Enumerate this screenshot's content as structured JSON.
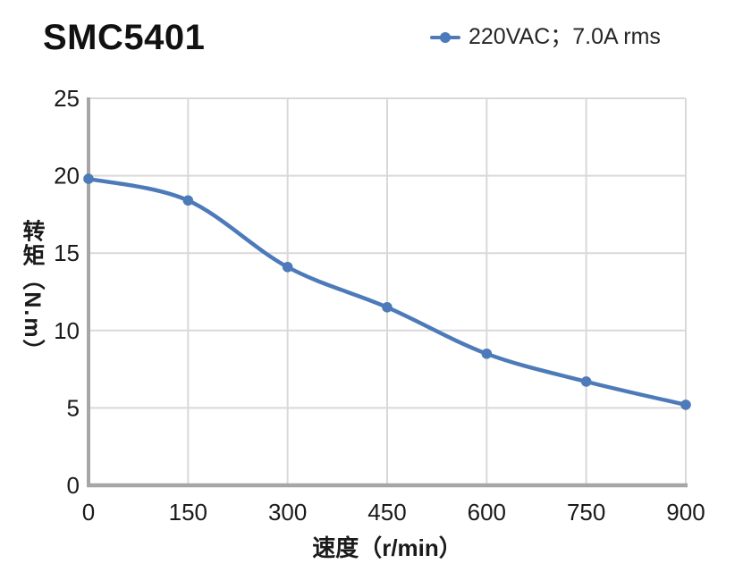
{
  "header": {
    "title": "SMC5401"
  },
  "chart_data": {
    "type": "line",
    "title": "SMC5401",
    "series": [
      {
        "name": "220VAC；7.0A rms",
        "x": [
          0,
          150,
          300,
          450,
          600,
          750,
          900
        ],
        "values": [
          19.8,
          18.4,
          14.1,
          11.5,
          8.5,
          6.7,
          5.2
        ]
      }
    ],
    "xlabel": "速度（r/min）",
    "ylabel": "转矩（N.m）",
    "xlim": [
      0,
      900
    ],
    "ylim": [
      0,
      25
    ],
    "xticks": [
      0,
      150,
      300,
      450,
      600,
      750,
      900
    ],
    "yticks": [
      0,
      5,
      10,
      15,
      20,
      25
    ],
    "grid": true,
    "smooth": true,
    "legend_position": "top-right",
    "marker": "circle",
    "colors": {
      "line": "#4d7bb9",
      "grid": "#d9d9d9",
      "axis": "#a6a6a6",
      "text": "#1a1a1a"
    }
  }
}
